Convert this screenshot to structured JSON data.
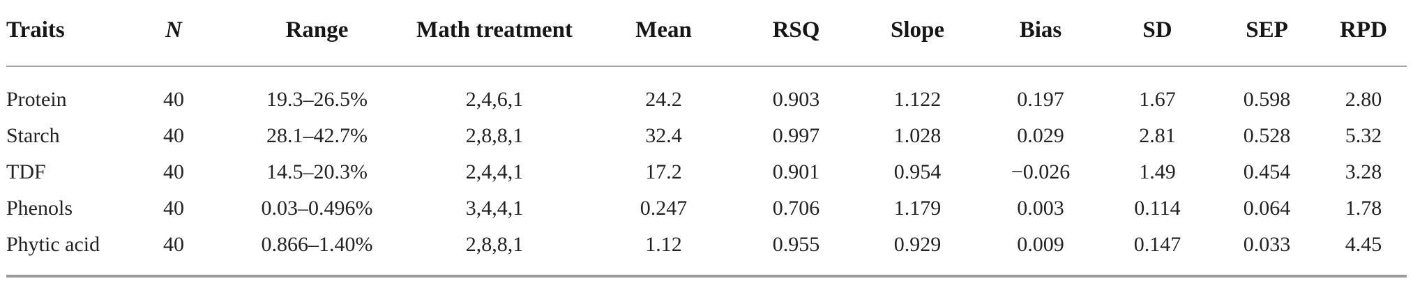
{
  "chart_data": {
    "type": "table",
    "columns": [
      "Traits",
      "N",
      "Range",
      "Math treatment",
      "Mean",
      "RSQ",
      "Slope",
      "Bias",
      "SD",
      "SEP",
      "RPD"
    ],
    "rows": [
      [
        "Protein",
        "40",
        "19.3–26.5%",
        "2,4,6,1",
        "24.2",
        "0.903",
        "1.122",
        "0.197",
        "1.67",
        "0.598",
        "2.80"
      ],
      [
        "Starch",
        "40",
        "28.1–42.7%",
        "2,8,8,1",
        "32.4",
        "0.997",
        "1.028",
        "0.029",
        "2.81",
        "0.528",
        "5.32"
      ],
      [
        "TDF",
        "40",
        "14.5–20.3%",
        "2,4,4,1",
        "17.2",
        "0.901",
        "0.954",
        "−0.026",
        "1.49",
        "0.454",
        "3.28"
      ],
      [
        "Phenols",
        "40",
        "0.03–0.496%",
        "3,4,4,1",
        "0.247",
        "0.706",
        "1.179",
        "0.003",
        "0.114",
        "0.064",
        "1.78"
      ],
      [
        "Phytic acid",
        "40",
        "0.866–1.40%",
        "2,8,8,1",
        "1.12",
        "0.955",
        "0.929",
        "0.009",
        "0.147",
        "0.033",
        "4.45"
      ]
    ]
  },
  "colors": {
    "background": "#ffffff",
    "text": "#222222",
    "header_text": "#161616",
    "rule_top": "#a6a6a6",
    "rule_bottom": "#9b9b9b"
  }
}
